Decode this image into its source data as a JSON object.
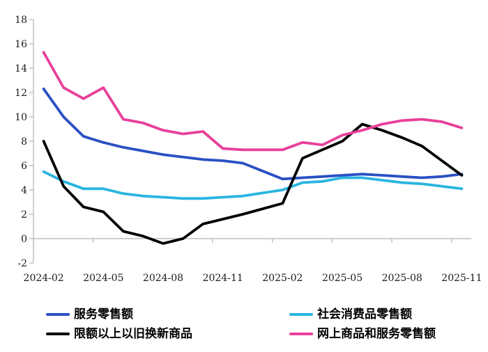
{
  "chart_data": {
    "type": "line",
    "title": "",
    "x_categories": [
      "2024-02",
      "2024-03",
      "2024-04",
      "2024-05",
      "2024-06",
      "2024-07",
      "2024-08",
      "2024-09",
      "2024-10",
      "2024-11",
      "2024-12",
      "2025-01",
      "2025-02",
      "2025-03",
      "2025-04",
      "2025-05",
      "2025-06",
      "2025-07",
      "2025-08",
      "2025-09",
      "2025-10",
      "2025-11"
    ],
    "x_tick_labels": [
      "2024-02",
      "2024-05",
      "2024-08",
      "2024-11",
      "2025-02",
      "2025-05",
      "2025-08",
      "2025-11"
    ],
    "gap_month": "2025-01",
    "y_axis": {
      "min": -2,
      "max": 18,
      "step": 2,
      "ticks": [
        18,
        16,
        14,
        12,
        10,
        8,
        6,
        4,
        2,
        0,
        -2
      ]
    },
    "grid": "zero-line-only",
    "legend_position": "bottom",
    "series": [
      {
        "key": "services_retail",
        "name": "服务零售额",
        "color": "#2a50c4",
        "values": [
          12.3,
          10.0,
          8.4,
          7.9,
          7.5,
          7.2,
          6.9,
          6.7,
          6.5,
          6.4,
          6.2,
          null,
          4.9,
          5.0,
          5.1,
          5.2,
          5.3,
          5.2,
          5.1,
          5.0,
          5.1,
          5.3
        ]
      },
      {
        "key": "consumer_goods_retail",
        "name": "社会消费品零售额",
        "color": "#29b5e0",
        "values": [
          5.5,
          4.7,
          4.1,
          4.1,
          3.7,
          3.5,
          3.4,
          3.3,
          3.3,
          3.4,
          3.5,
          null,
          4.0,
          4.6,
          4.7,
          5.0,
          5.0,
          4.8,
          4.6,
          4.5,
          4.3,
          4.1
        ]
      },
      {
        "key": "trade_in_goods",
        "name": "限额以上以旧换新商品",
        "color": "#000000",
        "values": [
          8.0,
          4.3,
          2.6,
          2.2,
          0.6,
          0.2,
          -0.4,
          0.0,
          1.2,
          1.6,
          2.0,
          null,
          2.9,
          6.6,
          7.3,
          8.0,
          9.4,
          8.9,
          8.3,
          7.6,
          6.4,
          5.2
        ]
      },
      {
        "key": "online_retail",
        "name": "网上商品和服务零售额",
        "color": "#e8409a",
        "values": [
          15.3,
          12.4,
          11.5,
          12.4,
          9.8,
          9.5,
          8.9,
          8.6,
          8.8,
          7.4,
          7.3,
          null,
          7.3,
          7.9,
          7.7,
          8.5,
          8.9,
          9.4,
          9.7,
          9.8,
          9.6,
          9.1
        ]
      }
    ]
  },
  "colors": {
    "axis": "#bdbdbd",
    "tick_text": "#1a1a1a",
    "background": "#ffffff"
  }
}
